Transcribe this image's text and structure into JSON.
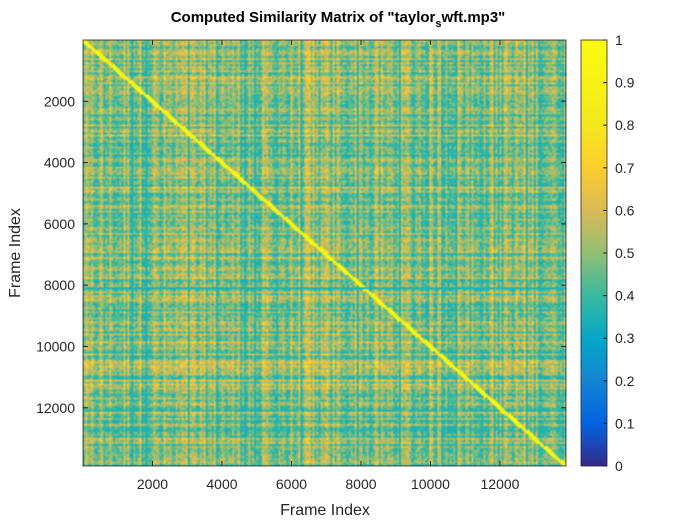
{
  "chart_data": {
    "type": "heatmap",
    "title": "Computed Similarity Matrix of \"taylor",
    "title_subscript": "s",
    "title_suffix": "wft.mp3\"",
    "xlabel": "Frame Index",
    "ylabel": "Frame Index",
    "xlim": [
      1,
      13900
    ],
    "ylim": [
      1,
      13900
    ],
    "x_ticks": [
      2000,
      4000,
      6000,
      8000,
      10000,
      12000
    ],
    "y_ticks": [
      2000,
      4000,
      6000,
      8000,
      10000,
      12000
    ],
    "y_reversed": true,
    "colorbar": {
      "colormap": "parula",
      "limits": [
        0,
        1
      ],
      "ticks": [
        0,
        0.1,
        0.2,
        0.3,
        0.4,
        0.5,
        0.6,
        0.7,
        0.8,
        0.9,
        1
      ]
    },
    "matrix_description_values": {
      "typical_range": [
        0.45,
        0.9
      ],
      "diagonal_value": 1,
      "low_similarity_row": 8050,
      "low_similarity_column": 5000
    }
  }
}
